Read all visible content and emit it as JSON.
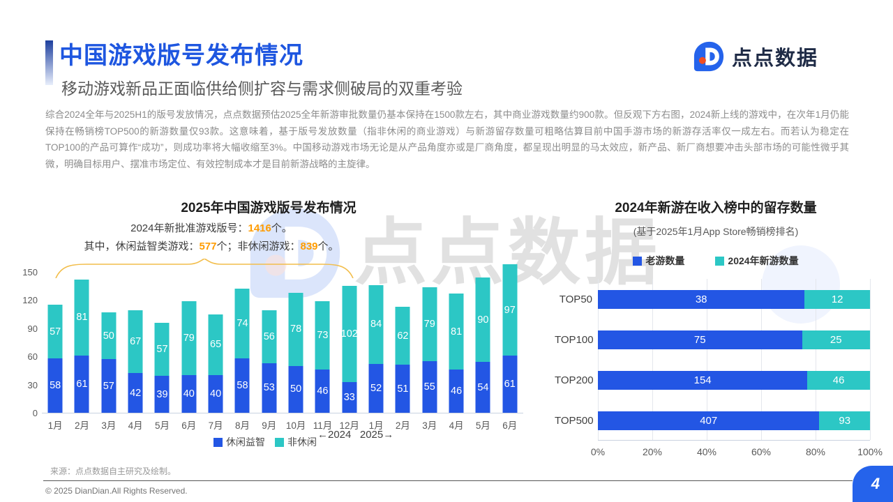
{
  "header": {
    "title": "中国游戏版号发布情况",
    "subtitle": "移动游戏新品正面临供给侧扩容与需求侧破局的双重考验",
    "logo_text": "点点数据"
  },
  "intro": {
    "text": "综合2024全年与2025H1的版号发放情况，点点数据预估2025全年新游审批数量仍基本保持在1500款左右，其中商业游戏数量约900款。但反观下方右图，2024新上线的游戏中，在次年1月仍能保持在畅销榜TOP500的新游数量仅93款。这意味着，基于版号发放数量（指非休闲的商业游戏）与新游留存数量可粗略估算目前中国手游市场的新游存活率仅一成左右。而若认为稳定在TOP100的产品可算作“成功”，则成功率将大幅收缩至3%。中国移动游戏市场无论是从产品角度亦或是厂商角度，都呈现出明显的马太效应，新产品、新厂商想要冲击头部市场的可能性微乎其微，明确目标用户、摆准市场定位、有效控制成本才是目前新游战略的主旋律。"
  },
  "chart_data": [
    {
      "type": "bar",
      "stacked": true,
      "orientation": "vertical",
      "title": "2025年中国游戏版号发布情况",
      "annotation": {
        "line1_prefix": "2024年新批准游戏版号：",
        "line1_value": "1416",
        "line1_suffix": "个。",
        "line2_prefix": "其中，休闲益智类游戏：",
        "line2_value1": "577",
        "line2_mid": "个；非休闲游戏：",
        "line2_value2": "839",
        "line2_suffix": "个。"
      },
      "categories": [
        "1月",
        "2月",
        "3月",
        "4月",
        "5月",
        "6月",
        "7月",
        "8月",
        "9月",
        "10月",
        "11月",
        "12月",
        "1月",
        "2月",
        "3月",
        "4月",
        "5月",
        "6月"
      ],
      "series": [
        {
          "name": "休闲益智",
          "color": "#2356e4",
          "values": [
            58,
            61,
            57,
            42,
            39,
            40,
            40,
            58,
            53,
            50,
            46,
            33,
            52,
            51,
            55,
            46,
            54,
            61
          ]
        },
        {
          "name": "非休闲",
          "color": "#2cc7c5",
          "values": [
            57,
            81,
            50,
            67,
            57,
            79,
            65,
            74,
            56,
            78,
            73,
            102,
            84,
            62,
            79,
            81,
            90,
            97
          ]
        }
      ],
      "ylim": [
        0,
        150
      ],
      "yticks": [
        0,
        30,
        60,
        90,
        120,
        150
      ],
      "year_marker": "←2024   2025→",
      "legend_position": "bottom",
      "grid": false
    },
    {
      "type": "bar",
      "stacked": true,
      "orientation": "horizontal",
      "normalized": true,
      "title": "2024年新游在收入榜中的留存数量",
      "subtitle": "(基于2025年1月App Store畅销榜排名)",
      "categories": [
        "TOP50",
        "TOP100",
        "TOP200",
        "TOP500"
      ],
      "series": [
        {
          "name": "老游数量",
          "color": "#2356e4",
          "values": [
            38,
            75,
            154,
            407
          ]
        },
        {
          "name": "2024年新游数量",
          "color": "#2cc7c5",
          "values": [
            12,
            25,
            46,
            93
          ]
        }
      ],
      "xticks": [
        "0%",
        "20%",
        "40%",
        "60%",
        "80%",
        "100%"
      ],
      "xlim_percent": [
        0,
        100
      ],
      "legend_position": "top",
      "grid": true
    }
  ],
  "watermark": {
    "text": "点点数据"
  },
  "footer": {
    "source": "来源：点点数据自主研究及绘制。",
    "copyright": "© 2025 DianDian.All Rights Reserved.",
    "page_number": "4"
  },
  "colors": {
    "title_blue": "#1e56e0",
    "bar_blue": "#2356e4",
    "bar_teal": "#2cc7c5",
    "highlight_orange": "#ff9c00",
    "brace_gold": "#f2bd4a"
  }
}
